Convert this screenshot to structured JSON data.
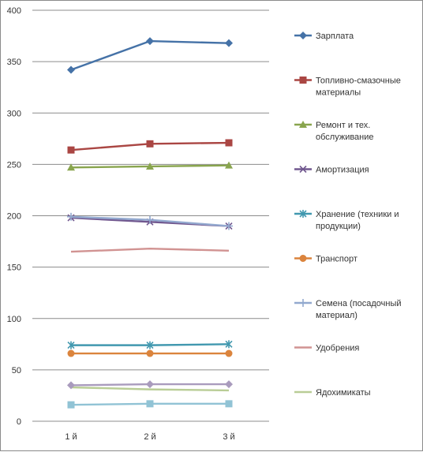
{
  "chart_data": {
    "type": "line",
    "title": "",
    "xlabel": "",
    "ylabel": "",
    "categories": [
      "1 й",
      "2 й",
      "3 й"
    ],
    "ylim": [
      0,
      400
    ],
    "yticks": [
      0,
      50,
      100,
      150,
      200,
      250,
      300,
      350,
      400
    ],
    "grid": true,
    "legend": "right",
    "series": [
      {
        "name": "Зарплата",
        "values": [
          342,
          370,
          368
        ],
        "color": "#4572A7",
        "marker": "diamond"
      },
      {
        "name": "Топливно-смазочные материалы",
        "values": [
          264,
          270,
          271
        ],
        "color": "#AA4643",
        "marker": "square"
      },
      {
        "name": "Ремонт и тех. обслуживание",
        "values": [
          247,
          248,
          249
        ],
        "color": "#89A54E",
        "marker": "triangle"
      },
      {
        "name": "Амортизация",
        "values": [
          198,
          194,
          190
        ],
        "color": "#71588F",
        "marker": "x"
      },
      {
        "name": "Хранение (техники и продукции)",
        "values": [
          74,
          74,
          75
        ],
        "color": "#4198AF",
        "marker": "star"
      },
      {
        "name": "Транспорт",
        "values": [
          66,
          66,
          66
        ],
        "color": "#DB843D",
        "marker": "circle"
      },
      {
        "name": "Семена (посадочный материал)",
        "values": [
          199,
          196,
          190
        ],
        "color": "#93A9CF",
        "marker": "plus"
      },
      {
        "name": "Удобрения",
        "values": [
          165,
          168,
          166
        ],
        "color": "#D19392",
        "marker": "none"
      },
      {
        "name": "Ядохимикаты",
        "values": [
          33,
          31,
          30
        ],
        "color": "#B9CD96",
        "marker": "none"
      },
      {
        "name": "",
        "values": [
          35,
          36,
          36
        ],
        "color": "#A99BBD",
        "marker": "diamond"
      },
      {
        "name": "",
        "values": [
          16,
          17,
          17
        ],
        "color": "#91C3D5",
        "marker": "square"
      }
    ]
  }
}
